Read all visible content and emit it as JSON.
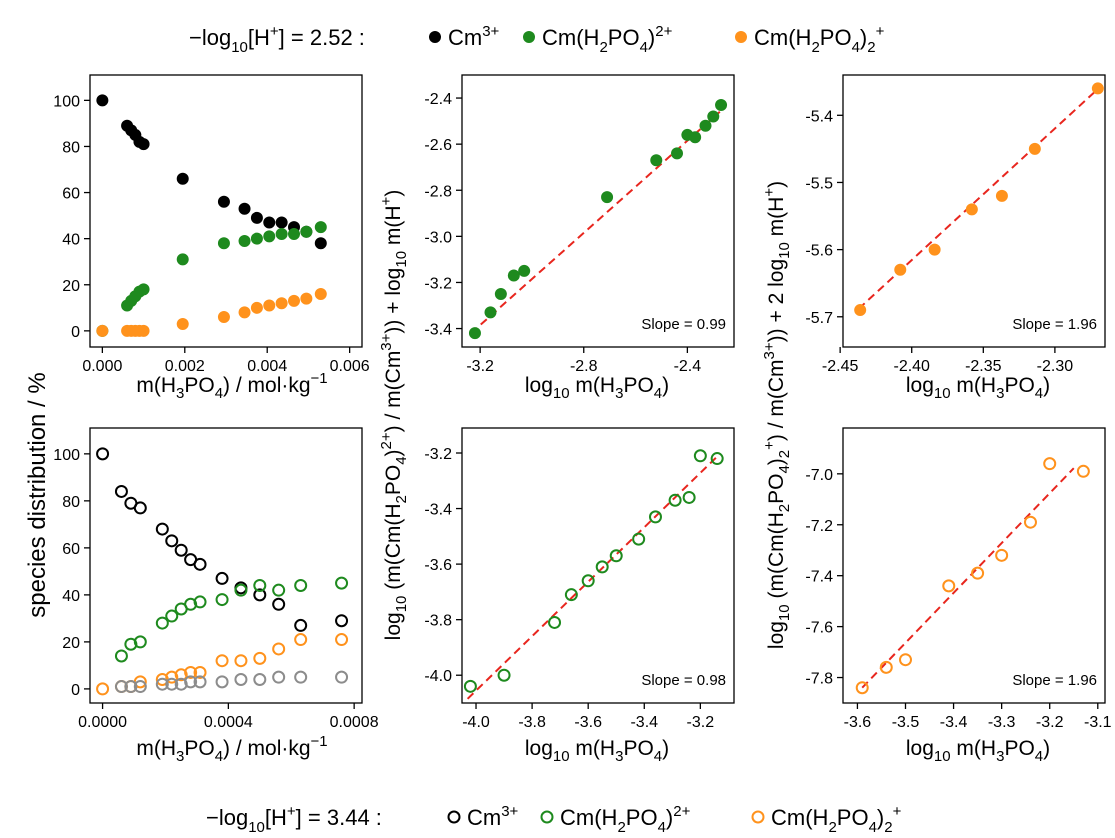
{
  "legend_top": {
    "condition": "−log₁₀[H⁺] = 2.52 :",
    "items": [
      {
        "label": "Cm³⁺",
        "color": "#000000",
        "marker": "filled"
      },
      {
        "label": "Cm(H₂PO₄)²⁺",
        "color": "#1e8a1e",
        "marker": "filled"
      },
      {
        "label": "Cm(H₂PO₄)₂⁺",
        "color": "#ff921c",
        "marker": "filled"
      }
    ]
  },
  "legend_bottom": {
    "condition": "−log₁₀[H⁺] = 3.44 :",
    "items": [
      {
        "label": "Cm³⁺",
        "color": "#000000",
        "marker": "open"
      },
      {
        "label": "Cm(H₂PO₄)²⁺",
        "color": "#1e8a1e",
        "marker": "open"
      },
      {
        "label": "Cm(H₂PO₄)₂⁺",
        "color": "#ff921c",
        "marker": "open"
      }
    ]
  },
  "shared_labels": {
    "species_ylabel": "species distribution / %",
    "col2_ylabel": "log₁₀ (m(Cm(H₂PO₄)²⁺) / m(Cm³⁺)) + log₁₀ m(H⁺)",
    "col3_ylabel": "log₁₀ (m(Cm(H₂PO₄)₂⁺) / m(Cm³⁺)) + 2 log₁₀ m(H⁺)",
    "species_xlabel": "m(H₃PO₄) / mol·kg⁻¹",
    "log_xlabel": "log₁₀ m(H₃PO₄)"
  },
  "colors": {
    "cm": "#000000",
    "cm_grey": "#8c8c8c",
    "complex1": "#1e8a1e",
    "complex2": "#ff921c",
    "fit": "#e8261e"
  },
  "chart_data": [
    {
      "type": "scatter",
      "condition": "−log₁₀[H⁺] = 2.52",
      "xlim": [
        -0.0003,
        0.0063
      ],
      "ylim": [
        -7,
        111
      ],
      "xticks": [
        0,
        0.002,
        0.004,
        0.006
      ],
      "xtick_labels": [
        "0.000",
        "0.002",
        "0.004",
        "0.006"
      ],
      "yticks": [
        0,
        20,
        40,
        60,
        80,
        100
      ],
      "xlabel": "m(H₃PO₄) / mol·kg⁻¹",
      "ylabel": "species distribution / %",
      "series": [
        {
          "name": "Cm³⁺",
          "marker": "filled",
          "x": [
            0,
            0.0006,
            0.0007,
            0.0008,
            0.0009,
            0.001,
            0.00195,
            0.00295,
            0.00345,
            0.00375,
            0.00405,
            0.00435,
            0.00465,
            0.00495,
            0.0053
          ],
          "y": [
            100,
            89,
            87,
            85,
            82,
            81,
            66,
            56,
            53,
            49,
            47,
            47,
            45,
            43,
            38
          ]
        },
        {
          "name": "Cm(H₂PO₄)²⁺",
          "marker": "filled",
          "x": [
            0,
            0.0006,
            0.0007,
            0.0008,
            0.0009,
            0.001,
            0.00195,
            0.00295,
            0.00345,
            0.00375,
            0.00405,
            0.00435,
            0.00465,
            0.00495,
            0.0053
          ],
          "y": [
            0,
            11,
            13,
            15,
            17,
            18,
            31,
            38,
            39,
            40,
            41,
            42,
            42,
            43,
            45
          ]
        },
        {
          "name": "Cm(H₂PO₄)₂⁺",
          "marker": "filled",
          "x": [
            0,
            0.0006,
            0.0007,
            0.0008,
            0.0009,
            0.001,
            0.00195,
            0.00295,
            0.00345,
            0.00375,
            0.00405,
            0.00435,
            0.00465,
            0.00495,
            0.0053
          ],
          "y": [
            0,
            0,
            0,
            0,
            0,
            0,
            3,
            6,
            8,
            10,
            11,
            12,
            13,
            14,
            16
          ]
        }
      ]
    },
    {
      "type": "scatter",
      "condition": "−log₁₀[H⁺] = 2.52",
      "xlim": [
        -3.27,
        -2.22
      ],
      "ylim": [
        -3.48,
        -2.3
      ],
      "xticks": [
        -3.2,
        -2.8,
        -2.4
      ],
      "xtick_labels": [
        "-3.2",
        "-2.8",
        "-2.4"
      ],
      "yticks": [
        -3.4,
        -3.2,
        -3.0,
        -2.8,
        -2.6,
        -2.4
      ],
      "ytick_labels": [
        "-3.4",
        "-3.2",
        "-3.0",
        "-2.8",
        "-2.6",
        "-2.4"
      ],
      "xlabel": "log₁₀ m(H₃PO₄)",
      "annotation": "Slope = 0.99",
      "fit": {
        "slope": 0.99,
        "x": [
          -3.235,
          -2.27
        ],
        "y": [
          -3.42,
          -2.455
        ]
      },
      "series": [
        {
          "name": "Cm(H₂PO₄)²⁺",
          "marker": "filled",
          "x": [
            -3.22,
            -3.16,
            -3.12,
            -3.07,
            -3.03,
            -2.71,
            -2.52,
            -2.44,
            -2.4,
            -2.37,
            -2.33,
            -2.3,
            -2.27
          ],
          "y": [
            -3.42,
            -3.33,
            -3.25,
            -3.17,
            -3.15,
            -2.83,
            -2.67,
            -2.64,
            -2.56,
            -2.57,
            -2.52,
            -2.48,
            -2.43
          ]
        }
      ]
    },
    {
      "type": "scatter",
      "condition": "−log₁₀[H⁺] = 2.52",
      "xlim": [
        -2.448,
        -2.265
      ],
      "ylim": [
        -5.745,
        -5.34
      ],
      "xticks": [
        -2.45,
        -2.4,
        -2.35,
        -2.3
      ],
      "xtick_labels": [
        "-2.45",
        "-2.40",
        "-2.35",
        "-2.30"
      ],
      "yticks": [
        -5.7,
        -5.6,
        -5.5,
        -5.4
      ],
      "ytick_labels": [
        "-5.7",
        "-5.6",
        "-5.5",
        "-5.4"
      ],
      "xlabel": "log₁₀ m(H₃PO₄)",
      "annotation": "Slope = 1.96",
      "fit": {
        "slope": 1.96,
        "x": [
          -2.437,
          -2.268
        ],
        "y": [
          -5.688,
          -5.357
        ]
      },
      "series": [
        {
          "name": "Cm(H₂PO₄)₂⁺",
          "marker": "filled",
          "x": [
            -2.436,
            -2.408,
            -2.384,
            -2.358,
            -2.337,
            -2.314,
            -2.27
          ],
          "y": [
            -5.69,
            -5.63,
            -5.6,
            -5.54,
            -5.52,
            -5.45,
            -5.36
          ]
        }
      ]
    },
    {
      "type": "scatter",
      "condition": "−log₁₀[H⁺] = 3.44",
      "xlim": [
        -4e-05,
        0.000825
      ],
      "ylim": [
        -6,
        111
      ],
      "xticks": [
        0,
        0.0004,
        0.0008
      ],
      "xtick_labels": [
        "0.0000",
        "0.0004",
        "0.0008"
      ],
      "yticks": [
        0,
        20,
        40,
        60,
        80,
        100
      ],
      "xlabel": "m(H₃PO₄) / mol·kg⁻¹",
      "ylabel": "species distribution / %",
      "series": [
        {
          "name": "Cm³⁺",
          "marker": "open",
          "x": [
            0,
            6e-05,
            9e-05,
            0.00012,
            0.00019,
            0.00022,
            0.00025,
            0.00028,
            0.00031,
            0.00038,
            0.00044,
            0.0005,
            0.00056,
            0.00063,
            0.00076
          ],
          "y": [
            100,
            84,
            79,
            77,
            68,
            63,
            59,
            55,
            53,
            47,
            43,
            40,
            36,
            27,
            29
          ]
        },
        {
          "name": "Cm(H₂PO₄)²⁺",
          "marker": "open",
          "x": [
            6e-05,
            9e-05,
            0.00012,
            0.00019,
            0.00022,
            0.00025,
            0.00028,
            0.00031,
            0.00038,
            0.00044,
            0.0005,
            0.00056,
            0.00063,
            0.00076
          ],
          "y": [
            14,
            19,
            20,
            28,
            31,
            34,
            36,
            37,
            38,
            42,
            44,
            42,
            44,
            45
          ]
        },
        {
          "name": "Cm(H₂PO₄)₂⁺",
          "marker": "open",
          "x": [
            0,
            6e-05,
            9e-05,
            0.00012,
            0.00019,
            0.00022,
            0.00025,
            0.00028,
            0.00031,
            0.00038,
            0.00044,
            0.0005,
            0.00056,
            0.00063,
            0.00076
          ],
          "y": [
            0,
            1,
            1,
            3,
            4,
            5,
            6,
            7,
            7,
            12,
            12,
            13,
            17,
            21,
            21
          ]
        },
        {
          "name": "",
          "marker": "open",
          "color": "grey",
          "x": [
            6e-05,
            9e-05,
            0.00012,
            0.00019,
            0.00022,
            0.00025,
            0.00028,
            0.00031,
            0.00038,
            0.00044,
            0.0005,
            0.00056,
            0.00063,
            0.00076
          ],
          "y": [
            1,
            1,
            1,
            2,
            2,
            2,
            3,
            3,
            3,
            4,
            4,
            5,
            5,
            5
          ]
        }
      ]
    },
    {
      "type": "scatter",
      "condition": "−log₁₀[H⁺] = 3.44",
      "xlim": [
        -4.05,
        -3.08
      ],
      "ylim": [
        -4.1,
        -3.11
      ],
      "xticks": [
        -4.0,
        -3.8,
        -3.6,
        -3.4,
        -3.2
      ],
      "xtick_labels": [
        "-4.0",
        "-3.8",
        "-3.6",
        "-3.4",
        "-3.2"
      ],
      "yticks": [
        -4.0,
        -3.8,
        -3.6,
        -3.4,
        -3.2
      ],
      "ytick_labels": [
        "-4.0",
        "-3.8",
        "-3.6",
        "-3.4",
        "-3.2"
      ],
      "xlabel": "log₁₀ m(H₃PO₄)",
      "annotation": "Slope = 0.98",
      "fit": {
        "slope": 0.98,
        "x": [
          -4.03,
          -3.13
        ],
        "y": [
          -4.085,
          -3.203
        ]
      },
      "series": [
        {
          "name": "Cm(H₂PO₄)²⁺",
          "marker": "open",
          "x": [
            -4.02,
            -3.9,
            -3.72,
            -3.66,
            -3.6,
            -3.55,
            -3.5,
            -3.42,
            -3.36,
            -3.29,
            -3.24,
            -3.2,
            -3.14
          ],
          "y": [
            -4.04,
            -4.0,
            -3.81,
            -3.71,
            -3.66,
            -3.61,
            -3.57,
            -3.51,
            -3.43,
            -3.37,
            -3.36,
            -3.21,
            -3.22
          ]
        }
      ]
    },
    {
      "type": "scatter",
      "condition": "−log₁₀[H⁺] = 3.44",
      "xlim": [
        -3.63,
        -3.085
      ],
      "ylim": [
        -7.9,
        -6.82
      ],
      "xticks": [
        -3.6,
        -3.5,
        -3.4,
        -3.3,
        -3.2,
        -3.1
      ],
      "xtick_labels": [
        "-3.6",
        "-3.5",
        "-3.4",
        "-3.3",
        "-3.2",
        "-3.1"
      ],
      "yticks": [
        -7.8,
        -7.6,
        -7.4,
        -7.2,
        -7.0
      ],
      "ytick_labels": [
        "-7.8",
        "-7.6",
        "-7.4",
        "-7.2",
        "-7.0"
      ],
      "xlabel": "log₁₀ m(H₃PO₄)",
      "annotation": "Slope = 1.96",
      "fit": {
        "slope": 1.96,
        "x": [
          -3.59,
          -3.15
        ],
        "y": [
          -7.84,
          -6.978
        ]
      },
      "series": [
        {
          "name": "Cm(H₂PO₄)₂⁺",
          "marker": "open",
          "x": [
            -3.59,
            -3.54,
            -3.5,
            -3.41,
            -3.35,
            -3.3,
            -3.24,
            -3.2,
            -3.13
          ],
          "y": [
            -7.84,
            -7.76,
            -7.73,
            -7.44,
            -7.39,
            -7.32,
            -7.19,
            -6.96,
            -6.99
          ]
        }
      ]
    }
  ]
}
